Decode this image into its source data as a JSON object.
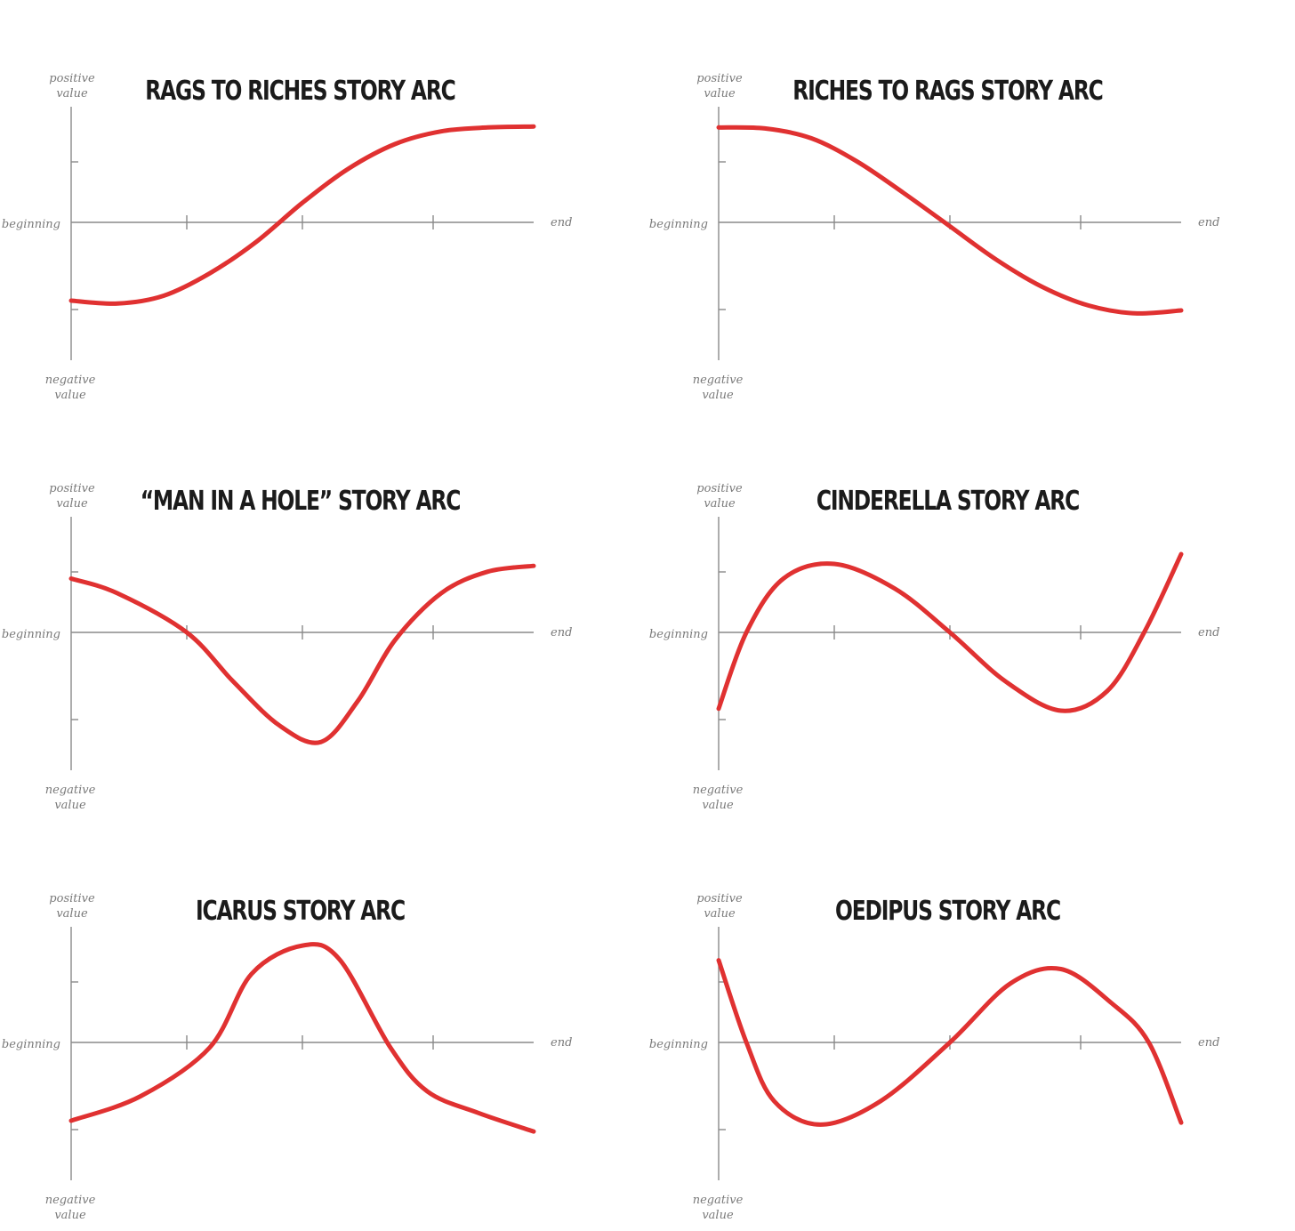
{
  "colors": {
    "curve": "#e03131",
    "axis": "#8a8a8a",
    "label": "#7a7a7a",
    "title": "#1b1b1b"
  },
  "axis_labels": {
    "positive": [
      "positive",
      "value"
    ],
    "negative": [
      "negative",
      "value"
    ],
    "start": "beginning",
    "end": "end"
  },
  "chart_data": [
    {
      "type": "line",
      "title": "RAGS TO RICHES STORY ARC",
      "x": [
        0,
        0.1,
        0.2,
        0.3,
        0.4,
        0.5,
        0.6,
        0.7,
        0.8,
        0.9,
        1.0
      ],
      "y": [
        -0.8,
        -0.83,
        -0.75,
        -0.52,
        -0.2,
        0.2,
        0.55,
        0.8,
        0.93,
        0.97,
        0.98
      ],
      "xlim": [
        0,
        1
      ],
      "ylim": [
        -1,
        1
      ]
    },
    {
      "type": "line",
      "title": "RICHES TO RAGS STORY ARC",
      "x": [
        0,
        0.1,
        0.2,
        0.3,
        0.4,
        0.5,
        0.6,
        0.7,
        0.8,
        0.9,
        1.0
      ],
      "y": [
        0.97,
        0.96,
        0.86,
        0.62,
        0.3,
        -0.04,
        -0.38,
        -0.66,
        -0.85,
        -0.93,
        -0.9
      ],
      "xlim": [
        0,
        1
      ],
      "ylim": [
        -1,
        1
      ]
    },
    {
      "type": "line",
      "title": "“MAN IN A HOLE” STORY ARC",
      "x": [
        0,
        0.1,
        0.25,
        0.35,
        0.45,
        0.54,
        0.62,
        0.7,
        0.8,
        0.9,
        1.0
      ],
      "y": [
        0.55,
        0.4,
        0.0,
        -0.5,
        -0.95,
        -1.12,
        -0.7,
        -0.08,
        0.4,
        0.62,
        0.68
      ],
      "xlim": [
        0,
        1
      ],
      "ylim": [
        -1.2,
        1
      ]
    },
    {
      "type": "line",
      "title": "CINDERELLA STORY ARC",
      "x": [
        0,
        0.06,
        0.14,
        0.25,
        0.38,
        0.5,
        0.62,
        0.74,
        0.84,
        0.92,
        1.0
      ],
      "y": [
        -0.78,
        0.0,
        0.55,
        0.7,
        0.45,
        0.0,
        -0.5,
        -0.8,
        -0.6,
        0.0,
        0.8
      ],
      "xlim": [
        0,
        1
      ],
      "ylim": [
        -1,
        1
      ]
    },
    {
      "type": "line",
      "title": "ICARUS STORY ARC",
      "x": [
        0,
        0.15,
        0.3,
        0.39,
        0.5,
        0.58,
        0.69,
        0.77,
        0.88,
        1.0
      ],
      "y": [
        -0.8,
        -0.55,
        -0.05,
        0.7,
        0.99,
        0.85,
        -0.05,
        -0.5,
        -0.72,
        -0.91
      ],
      "xlim": [
        0,
        1
      ],
      "ylim": [
        -1,
        1
      ]
    },
    {
      "type": "line",
      "title": "OEDIPUS STORY ARC",
      "x": [
        0,
        0.06,
        0.12,
        0.22,
        0.35,
        0.5,
        0.63,
        0.74,
        0.85,
        0.93,
        1.0
      ],
      "y": [
        0.84,
        0.0,
        -0.6,
        -0.84,
        -0.6,
        0.0,
        0.6,
        0.75,
        0.4,
        0.0,
        -0.82
      ],
      "xlim": [
        0,
        1
      ],
      "ylim": [
        -1,
        1
      ]
    }
  ]
}
